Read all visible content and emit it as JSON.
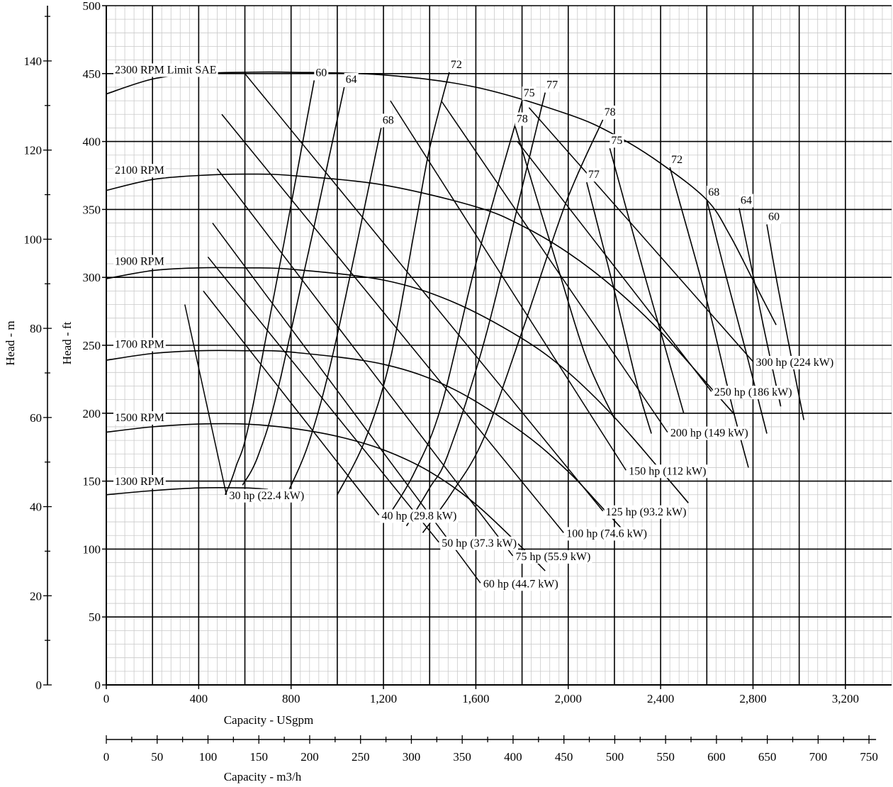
{
  "chart_data": {
    "type": "line",
    "title": "",
    "axes": {
      "x": {
        "label": "Capacity - USgpm",
        "range": [
          0,
          3400
        ],
        "ticks": [
          0,
          400,
          800,
          1200,
          1600,
          2000,
          2400,
          2800,
          3200
        ],
        "tick_labels": [
          "0",
          "400",
          "800",
          "1,200",
          "1,600",
          "2,000",
          "2,400",
          "2,800",
          "3,200"
        ]
      },
      "x2": {
        "label": "Capacity - m3/h",
        "ticks": [
          0,
          50,
          100,
          150,
          200,
          250,
          300,
          350,
          400,
          450,
          500,
          550,
          600,
          650,
          700,
          750
        ],
        "tick_labels": [
          "0",
          "50",
          "100",
          "150",
          "200",
          "250",
          "300",
          "350",
          "400",
          "450",
          "500",
          "550",
          "600",
          "650",
          "700",
          "750"
        ]
      },
      "y": {
        "label": "Head - ft",
        "range": [
          0,
          500
        ],
        "ticks": [
          0,
          50,
          100,
          150,
          200,
          250,
          300,
          350,
          400,
          450,
          500
        ],
        "tick_labels": [
          "0",
          "50",
          "100",
          "150",
          "200",
          "250",
          "300",
          "350",
          "400",
          "450",
          "500"
        ]
      },
      "y2": {
        "label": "Head - m",
        "ticks": [
          0,
          20,
          40,
          60,
          80,
          100,
          120,
          140
        ],
        "tick_labels": [
          "0",
          "20",
          "40",
          "60",
          "80",
          "100",
          "120",
          "140"
        ]
      }
    },
    "grid": true,
    "speed_curves": [
      {
        "name": "2300 RPM Limit SAE",
        "points": [
          [
            0,
            435
          ],
          [
            200,
            446
          ],
          [
            400,
            450
          ],
          [
            600,
            451
          ],
          [
            800,
            451
          ],
          [
            1200,
            449
          ],
          [
            1600,
            440
          ],
          [
            2000,
            420
          ],
          [
            2200,
            405
          ],
          [
            2400,
            384
          ],
          [
            2600,
            357
          ],
          [
            2700,
            331
          ],
          [
            2800,
            298
          ],
          [
            2900,
            265
          ]
        ]
      },
      {
        "name": "2100 RPM",
        "points": [
          [
            0,
            364
          ],
          [
            200,
            372
          ],
          [
            400,
            375
          ],
          [
            600,
            376
          ],
          [
            800,
            375
          ],
          [
            1200,
            368
          ],
          [
            1600,
            352
          ],
          [
            1800,
            338
          ],
          [
            2000,
            318
          ],
          [
            2200,
            292
          ],
          [
            2400,
            260
          ],
          [
            2600,
            222
          ],
          [
            2720,
            199
          ]
        ]
      },
      {
        "name": "1900 RPM",
        "points": [
          [
            0,
            299
          ],
          [
            200,
            305
          ],
          [
            400,
            307
          ],
          [
            600,
            307
          ],
          [
            800,
            306
          ],
          [
            1200,
            298
          ],
          [
            1500,
            282
          ],
          [
            1800,
            255
          ],
          [
            2000,
            230
          ],
          [
            2200,
            197
          ],
          [
            2400,
            158
          ],
          [
            2520,
            134
          ]
        ]
      },
      {
        "name": "1700 RPM",
        "points": [
          [
            0,
            239
          ],
          [
            200,
            244
          ],
          [
            400,
            246
          ],
          [
            600,
            246
          ],
          [
            800,
            245
          ],
          [
            1200,
            236
          ],
          [
            1500,
            218
          ],
          [
            1800,
            186
          ],
          [
            2000,
            157
          ],
          [
            2150,
            130
          ],
          [
            2270,
            108
          ]
        ]
      },
      {
        "name": "1500 RPM",
        "points": [
          [
            0,
            186
          ],
          [
            200,
            190
          ],
          [
            400,
            192
          ],
          [
            600,
            192
          ],
          [
            800,
            189
          ],
          [
            1000,
            183
          ],
          [
            1200,
            173
          ],
          [
            1400,
            157
          ],
          [
            1600,
            133
          ],
          [
            1800,
            101
          ],
          [
            1900,
            84
          ]
        ]
      },
      {
        "name": "1300 RPM",
        "points": [
          [
            0,
            140
          ],
          [
            200,
            143
          ],
          [
            400,
            145
          ],
          [
            600,
            145
          ],
          [
            700,
            144
          ]
        ]
      }
    ],
    "efficiency_lines": [
      {
        "name": "60",
        "points": [
          [
            515,
            140
          ],
          [
            560,
            160
          ],
          [
            640,
            210
          ],
          [
            900,
            445
          ]
        ]
      },
      {
        "name": "64",
        "points": [
          [
            590,
            147
          ],
          [
            660,
            170
          ],
          [
            760,
            230
          ],
          [
            1030,
            440
          ]
        ]
      },
      {
        "name": "68",
        "points": [
          [
            790,
            143
          ],
          [
            880,
            180
          ],
          [
            990,
            250
          ],
          [
            1190,
            410
          ]
        ]
      },
      {
        "name": "72",
        "points": [
          [
            1000,
            140
          ],
          [
            1120,
            180
          ],
          [
            1230,
            240
          ],
          [
            1340,
            340
          ],
          [
            1400,
            395
          ],
          [
            1485,
            451
          ]
        ]
      },
      {
        "name": "75",
        "points": [
          [
            1220,
            124
          ],
          [
            1330,
            155
          ],
          [
            1450,
            205
          ],
          [
            1600,
            310
          ],
          [
            1800,
            430
          ]
        ]
      },
      {
        "name": "77",
        "points": [
          [
            1300,
            117
          ],
          [
            1400,
            145
          ],
          [
            1480,
            170
          ],
          [
            1640,
            255
          ],
          [
            1820,
            380
          ],
          [
            1900,
            436
          ]
        ]
      },
      {
        "name": "78",
        "points": [
          [
            1370,
            112
          ],
          [
            1490,
            140
          ],
          [
            1630,
            180
          ],
          [
            1800,
            260
          ],
          [
            1990,
            355
          ],
          [
            2150,
            416
          ]
        ]
      },
      {
        "name": "78",
        "points": [
          [
            1770,
            411
          ],
          [
            1950,
            310
          ],
          [
            2080,
            240
          ],
          [
            2200,
            196
          ]
        ]
      },
      {
        "name": "77",
        "points": [
          [
            2080,
            370
          ],
          [
            2200,
            290
          ],
          [
            2300,
            220
          ],
          [
            2360,
            185
          ]
        ]
      },
      {
        "name": "75",
        "points": [
          [
            2180,
            395
          ],
          [
            2330,
            302
          ],
          [
            2450,
            230
          ],
          [
            2500,
            200
          ]
        ]
      },
      {
        "name": "72",
        "points": [
          [
            2440,
            381
          ],
          [
            2600,
            283
          ],
          [
            2710,
            205
          ],
          [
            2780,
            160
          ]
        ]
      },
      {
        "name": "68",
        "points": [
          [
            2600,
            357
          ],
          [
            2680,
            303
          ],
          [
            2770,
            245
          ],
          [
            2860,
            185
          ]
        ]
      },
      {
        "name": "64",
        "points": [
          [
            2740,
            351
          ],
          [
            2790,
            310
          ],
          [
            2850,
            260
          ],
          [
            2920,
            205
          ]
        ]
      },
      {
        "name": "60",
        "points": [
          [
            2860,
            339
          ],
          [
            2900,
            300
          ],
          [
            2950,
            255
          ],
          [
            3020,
            195
          ]
        ]
      }
    ],
    "power_lines": [
      {
        "name": "30 hp (22.4 kW)",
        "points": [
          [
            340,
            280
          ],
          [
            520,
            140
          ]
        ]
      },
      {
        "name": "40 hp (29.8 kW)",
        "points": [
          [
            420,
            290
          ],
          [
            1180,
            125
          ]
        ]
      },
      {
        "name": "50 hp (37.3 kW)",
        "points": [
          [
            440,
            315
          ],
          [
            1440,
            105
          ]
        ]
      },
      {
        "name": "60 hp (44.7 kW)",
        "points": [
          [
            460,
            340
          ],
          [
            1620,
            75
          ]
        ]
      },
      {
        "name": "75 hp (55.9 kW)",
        "points": [
          [
            480,
            380
          ],
          [
            1760,
            95
          ]
        ]
      },
      {
        "name": "100 hp (74.6 kW)",
        "points": [
          [
            500,
            420
          ],
          [
            1980,
            112
          ]
        ]
      },
      {
        "name": "125 hp (93.2 kW)",
        "points": [
          [
            600,
            450
          ],
          [
            2150,
            128
          ]
        ]
      },
      {
        "name": "150 hp (112 kW)",
        "points": [
          [
            1230,
            430
          ],
          [
            2250,
            158
          ]
        ]
      },
      {
        "name": "200 hp (149 kW)",
        "points": [
          [
            1450,
            430
          ],
          [
            2430,
            186
          ]
        ]
      },
      {
        "name": "250 hp (186 kW)",
        "points": [
          [
            1780,
            400
          ],
          [
            2620,
            216
          ]
        ]
      },
      {
        "name": "300 hp (224 kW)",
        "points": [
          [
            1830,
            425
          ],
          [
            2800,
            238
          ]
        ]
      }
    ]
  }
}
